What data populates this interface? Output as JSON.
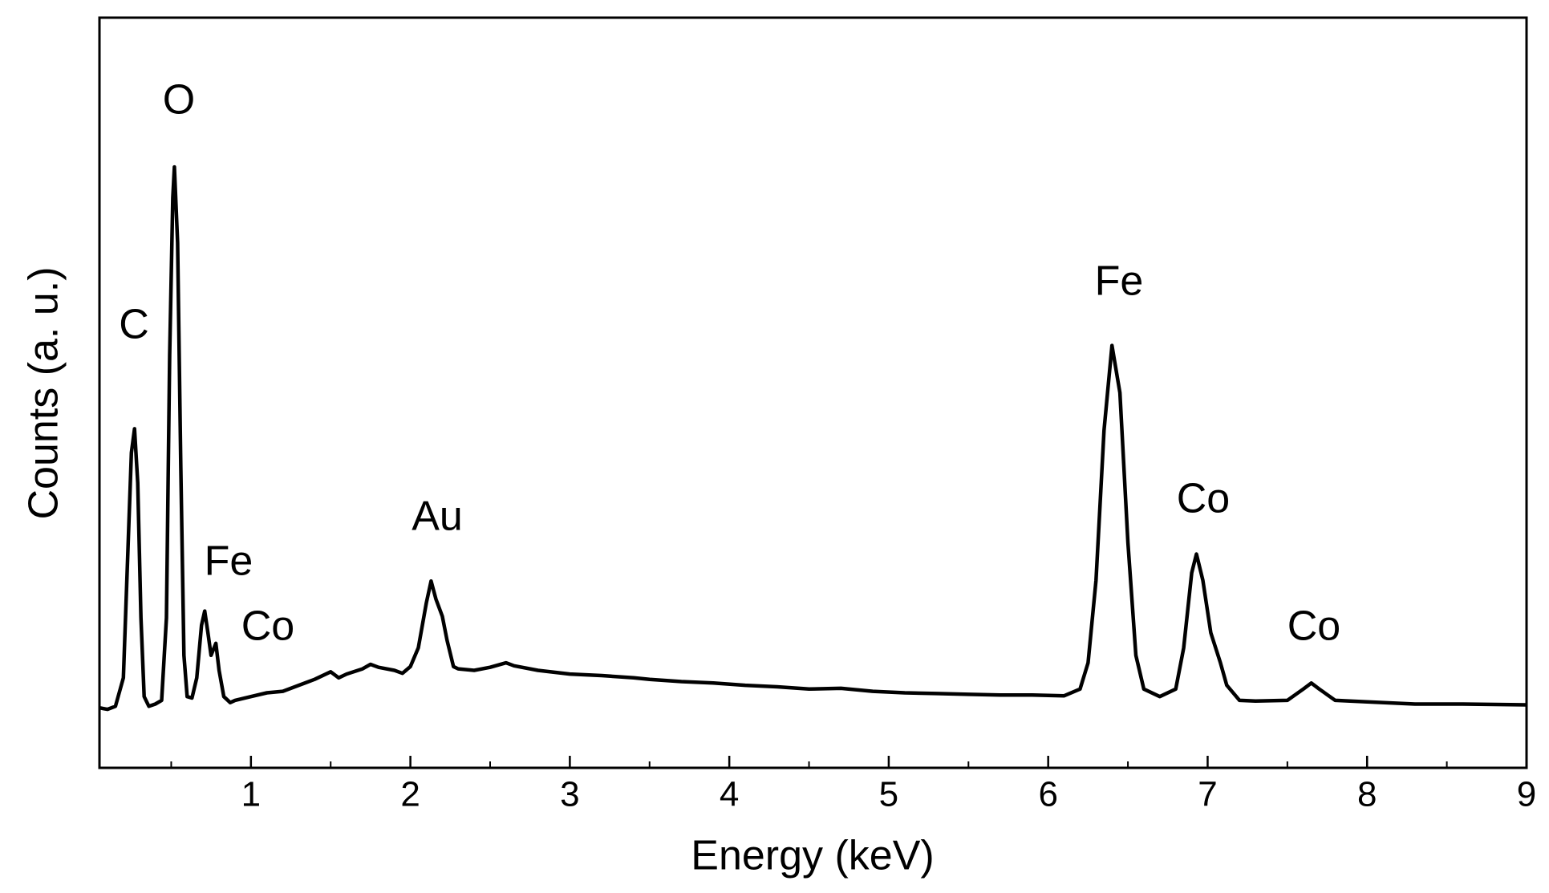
{
  "chart_data": {
    "type": "line",
    "x_label": "Energy (keV)",
    "y_label": "Counts (a. u.)",
    "x": [
      0.05,
      0.1,
      0.15,
      0.2,
      0.23,
      0.25,
      0.27,
      0.29,
      0.31,
      0.33,
      0.36,
      0.4,
      0.44,
      0.47,
      0.49,
      0.51,
      0.52,
      0.54,
      0.56,
      0.58,
      0.6,
      0.63,
      0.66,
      0.69,
      0.71,
      0.73,
      0.75,
      0.78,
      0.8,
      0.83,
      0.87,
      0.9,
      1.0,
      1.1,
      1.2,
      1.3,
      1.4,
      1.5,
      1.55,
      1.6,
      1.7,
      1.75,
      1.8,
      1.9,
      1.95,
      2.0,
      2.05,
      2.1,
      2.13,
      2.16,
      2.2,
      2.23,
      2.27,
      2.3,
      2.4,
      2.5,
      2.6,
      2.65,
      2.8,
      3.0,
      3.2,
      3.4,
      3.5,
      3.7,
      3.9,
      4.1,
      4.3,
      4.5,
      4.7,
      4.9,
      5.1,
      5.3,
      5.5,
      5.7,
      5.9,
      6.1,
      6.2,
      6.25,
      6.3,
      6.35,
      6.4,
      6.45,
      6.5,
      6.55,
      6.6,
      6.7,
      6.8,
      6.85,
      6.9,
      6.93,
      6.97,
      7.02,
      7.08,
      7.12,
      7.2,
      7.3,
      7.5,
      7.6,
      7.65,
      7.7,
      7.8,
      8.0,
      8.3,
      8.6,
      9.0
    ],
    "values": [
      8.0,
      7.8,
      8.2,
      12,
      30,
      42,
      45.2,
      38,
      20,
      9.5,
      8.2,
      8.5,
      9.0,
      20,
      55,
      76,
      80.1,
      70,
      40,
      15,
      9.5,
      9.3,
      12,
      19,
      20.9,
      18,
      15,
      16.6,
      13,
      9.5,
      8.7,
      9.0,
      9.5,
      10.0,
      10.2,
      11.0,
      11.8,
      12.8,
      12.0,
      12.5,
      13.2,
      13.8,
      13.4,
      13.0,
      12.6,
      13.5,
      16,
      22,
      24.9,
      22.5,
      20.2,
      17,
      13.5,
      13.2,
      13.0,
      13.4,
      14.0,
      13.6,
      13.0,
      12.5,
      12.3,
      12.0,
      11.8,
      11.5,
      11.3,
      11.0,
      10.8,
      10.5,
      10.6,
      10.2,
      10.0,
      9.9,
      9.8,
      9.7,
      9.7,
      9.6,
      10.5,
      14,
      25,
      45,
      56.3,
      50,
      30,
      15,
      10.5,
      9.5,
      10.5,
      16,
      26,
      28.5,
      25,
      18,
      14,
      11,
      9.0,
      8.9,
      9.0,
      10.5,
      11.3,
      10.5,
      9.0,
      8.8,
      8.5,
      8.5,
      8.4
    ],
    "color": "#000000",
    "xlim": [
      0.05,
      9
    ],
    "xticks": [
      1,
      2,
      3,
      4,
      5,
      6,
      7,
      8,
      9
    ],
    "xminor_ticks": [
      0.5,
      1.5,
      2.5,
      3.5,
      4.5,
      5.5,
      6.5,
      7.5,
      8.5
    ],
    "ylim": [
      0,
      100
    ],
    "annotations": [
      "O",
      "C",
      "Fe",
      "Co",
      "Au",
      "Fe",
      "Co",
      "Co"
    ]
  }
}
